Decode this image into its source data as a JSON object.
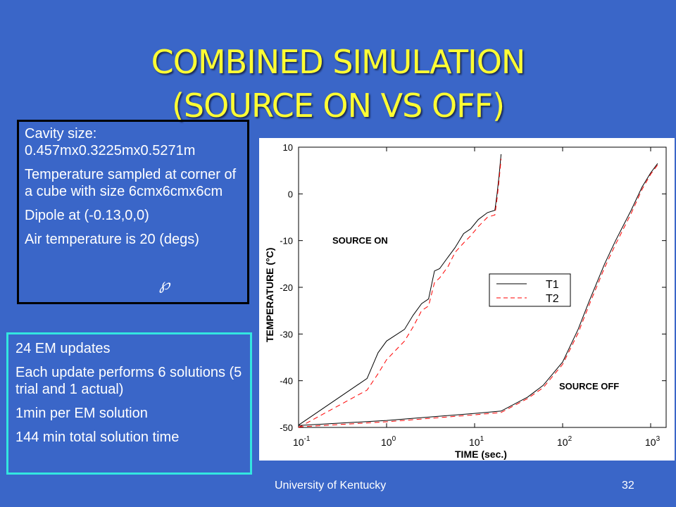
{
  "slide": {
    "title_line1": "COMBINED SIMULATION",
    "title_line2": "(SOURCE ON VS OFF)",
    "box1": [
      "Cavity size: 0.457mx0.3225mx0.5271m",
      "Temperature sampled at corner of a cube with size 6cmx6cmx6cm",
      "Dipole at (-0.13,0,0)",
      "Air temperature is 20 (degs)"
    ],
    "box2": [
      "24 EM updates",
      "Each update performs 6 solutions (5 trial and 1 actual)",
      "1min per EM solution",
      "144 min total solution time"
    ],
    "footer_left": "University of Kentucky",
    "page_number": "32",
    "colors": {
      "background": "#3a66c8",
      "title": "#ffff33",
      "box1_border": "#000000",
      "box2_border": "#33e6e0"
    }
  },
  "chart_data": {
    "type": "line",
    "xlabel": "TIME (sec.)",
    "ylabel": "TEMPERATURE (°C)",
    "x_scale": "log",
    "xlim": [
      0.1,
      1500
    ],
    "ylim": [
      -50,
      10
    ],
    "x_ticks": [
      {
        "value": 0.1,
        "base": "10",
        "exp": "-1"
      },
      {
        "value": 1,
        "base": "10",
        "exp": "0"
      },
      {
        "value": 10,
        "base": "10",
        "exp": "1"
      },
      {
        "value": 100,
        "base": "10",
        "exp": "2"
      },
      {
        "value": 1000,
        "base": "10",
        "exp": "3"
      }
    ],
    "y_ticks": [
      10,
      0,
      -10,
      -20,
      -30,
      -40,
      -50
    ],
    "legend": [
      "T1",
      "T2"
    ],
    "legend_position": "center-right",
    "annotations": [
      "SOURCE ON",
      "SOURCE OFF"
    ],
    "series": [
      {
        "name": "T1",
        "group": "SOURCE ON",
        "style": "solid",
        "color": "#000000",
        "points": [
          [
            0.1,
            -49.5
          ],
          [
            0.6,
            -39.5
          ],
          [
            0.8,
            -34
          ],
          [
            1,
            -31.5
          ],
          [
            1.6,
            -29
          ],
          [
            2,
            -26
          ],
          [
            2.5,
            -23.5
          ],
          [
            3,
            -22.5
          ],
          [
            3.5,
            -16.5
          ],
          [
            4,
            -16
          ],
          [
            5,
            -13.5
          ],
          [
            6,
            -11.5
          ],
          [
            7.5,
            -8.5
          ],
          [
            9,
            -7.5
          ],
          [
            11,
            -5.5
          ],
          [
            14,
            -4
          ],
          [
            17,
            -3.5
          ],
          [
            18,
            0
          ],
          [
            19,
            4
          ],
          [
            20,
            8.5
          ]
        ]
      },
      {
        "name": "T2",
        "group": "SOURCE ON",
        "style": "dashed",
        "color": "#ff0000",
        "points": [
          [
            0.1,
            -50
          ],
          [
            0.6,
            -42
          ],
          [
            0.8,
            -38.5
          ],
          [
            1,
            -35.5
          ],
          [
            1.6,
            -31.5
          ],
          [
            2,
            -28.5
          ],
          [
            2.5,
            -25
          ],
          [
            3,
            -24
          ],
          [
            3.5,
            -19
          ],
          [
            4,
            -18
          ],
          [
            5,
            -15.5
          ],
          [
            6,
            -12.5
          ],
          [
            7.5,
            -10.5
          ],
          [
            9,
            -9
          ],
          [
            11,
            -7
          ],
          [
            14,
            -5
          ],
          [
            17,
            -4.5
          ],
          [
            18,
            -1
          ],
          [
            19,
            3
          ],
          [
            20,
            7.5
          ]
        ]
      },
      {
        "name": "T1",
        "group": "SOURCE OFF",
        "style": "solid",
        "color": "#000000",
        "points": [
          [
            0.1,
            -49.6
          ],
          [
            1,
            -48.5
          ],
          [
            10,
            -47
          ],
          [
            20,
            -46.5
          ],
          [
            40,
            -43.5
          ],
          [
            60,
            -41
          ],
          [
            100,
            -36
          ],
          [
            150,
            -29
          ],
          [
            200,
            -23
          ],
          [
            300,
            -15
          ],
          [
            400,
            -10
          ],
          [
            600,
            -3.5
          ],
          [
            800,
            1.5
          ],
          [
            1000,
            4.5
          ],
          [
            1200,
            6.5
          ]
        ]
      },
      {
        "name": "T2",
        "group": "SOURCE OFF",
        "style": "dashed",
        "color": "#ff0000",
        "points": [
          [
            0.1,
            -49.9
          ],
          [
            1,
            -48.8
          ],
          [
            10,
            -47.3
          ],
          [
            20,
            -46.8
          ],
          [
            40,
            -43.8
          ],
          [
            60,
            -41.5
          ],
          [
            100,
            -36.5
          ],
          [
            150,
            -29.8
          ],
          [
            200,
            -23.8
          ],
          [
            300,
            -15.8
          ],
          [
            400,
            -10.8
          ],
          [
            600,
            -4.2
          ],
          [
            800,
            1
          ],
          [
            1000,
            4.2
          ],
          [
            1200,
            6.2
          ]
        ]
      }
    ]
  }
}
